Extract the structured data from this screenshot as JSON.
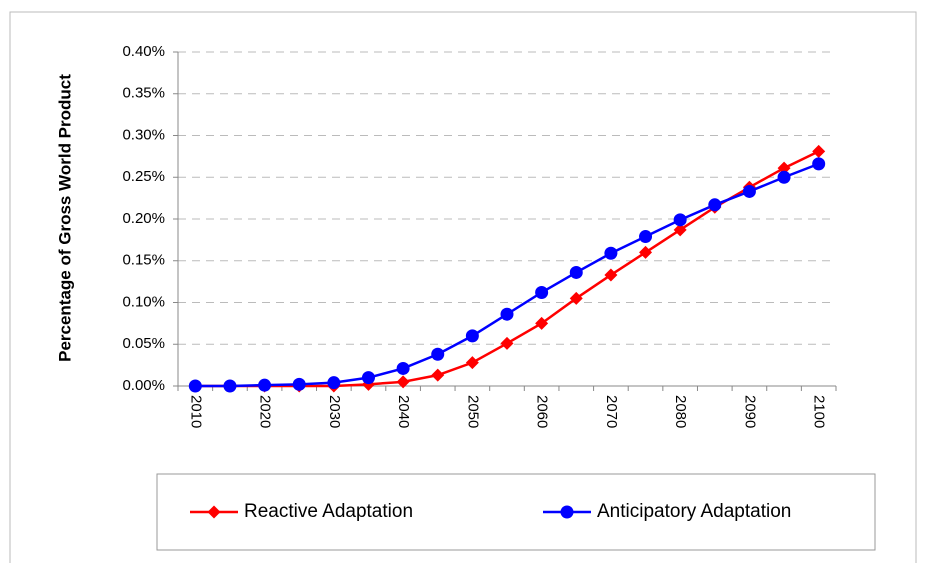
{
  "chart_data": {
    "type": "line",
    "y_label": "Percentage of Gross World Product",
    "categories": [
      "2010",
      null,
      "2020",
      null,
      "2030",
      null,
      "2040",
      null,
      "2050",
      null,
      "2060",
      null,
      "2070",
      null,
      "2080",
      null,
      "2090",
      null,
      "2100"
    ],
    "series": [
      {
        "name": "Reactive Adaptation",
        "color": "#ff0000",
        "marker": "diamond",
        "values": [
          0,
          0,
          0,
          0,
          0,
          0.002,
          0.005,
          0.013,
          0.028,
          0.051,
          0.075,
          0.105,
          0.133,
          0.16,
          0.187,
          0.214,
          0.238,
          0.261,
          0.281
        ]
      },
      {
        "name": "Anticipatory Adaptation",
        "color": "#0000ff",
        "marker": "circle",
        "values": [
          0,
          0,
          0.001,
          0.002,
          0.004,
          0.01,
          0.021,
          0.038,
          0.06,
          0.086,
          0.112,
          0.136,
          0.159,
          0.179,
          0.199,
          0.217,
          0.233,
          0.25,
          0.266
        ]
      }
    ],
    "ylim": [
      0,
      0.4
    ],
    "yticks": [
      {
        "value": 0,
        "label": "0.00%"
      },
      {
        "value": 0.05,
        "label": "0.05%"
      },
      {
        "value": 0.1,
        "label": "0.10%"
      },
      {
        "value": 0.15,
        "label": "0.15%"
      },
      {
        "value": 0.2,
        "label": "0.20%"
      },
      {
        "value": 0.25,
        "label": "0.25%"
      },
      {
        "value": 0.3,
        "label": "0.30%"
      },
      {
        "value": 0.35,
        "label": "0.35%"
      },
      {
        "value": 0.4,
        "label": "0.40%"
      }
    ],
    "grid": true,
    "legend": "bottom"
  }
}
